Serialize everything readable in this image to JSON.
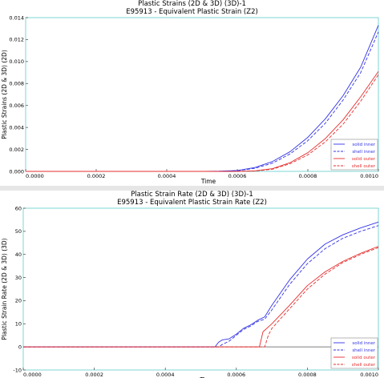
{
  "chart_data": [
    {
      "type": "line",
      "title": "Plastic Strains (2D & 3D) (3D)-1",
      "subtitle": "E95913 - Equivalent Plastic Strain (Z2)",
      "xlabel": "Time",
      "ylabel": "Plastic Strains (2D & 3D) (2D)",
      "xlim": [
        0,
        0.001
      ],
      "ylim": [
        0,
        0.014
      ],
      "xticks": [
        "0.0000",
        "0.0002",
        "0.0004",
        "0.0006",
        "0.0008",
        "0.0010"
      ],
      "yticks": [
        "0.000",
        "0.002",
        "0.004",
        "0.006",
        "0.008",
        "0.010",
        "0.012",
        "0.014"
      ],
      "legend_position": "bottom-right",
      "grid": false,
      "series": [
        {
          "name": "solid inner",
          "color": "#3333e6",
          "dash": "solid",
          "x": [
            0,
            0.0005,
            0.00055,
            0.0006,
            0.00065,
            0.0007,
            0.00075,
            0.0008,
            0.00085,
            0.0009,
            0.00095,
            0.001
          ],
          "y": [
            0,
            0,
            2e-05,
            8e-05,
            0.00035,
            0.0009,
            0.0018,
            0.0031,
            0.0048,
            0.0069,
            0.0095,
            0.0133
          ]
        },
        {
          "name": "shell inner",
          "color": "#3333e6",
          "dash": "dashed",
          "x": [
            0,
            0.0005,
            0.00055,
            0.0006,
            0.00065,
            0.0007,
            0.00075,
            0.0008,
            0.00085,
            0.0009,
            0.00095,
            0.001
          ],
          "y": [
            0,
            0,
            1e-05,
            6e-05,
            0.00028,
            0.00075,
            0.0016,
            0.0028,
            0.0044,
            0.0065,
            0.009,
            0.0127
          ]
        },
        {
          "name": "solid outer",
          "color": "#e62e2e",
          "dash": "solid",
          "x": [
            0,
            0.0006,
            0.00065,
            0.0007,
            0.00075,
            0.0008,
            0.00085,
            0.0009,
            0.00095,
            0.001
          ],
          "y": [
            0,
            0,
            5e-05,
            0.00025,
            0.0008,
            0.0017,
            0.003,
            0.0047,
            0.0068,
            0.0091
          ]
        },
        {
          "name": "shell outer",
          "color": "#e62e2e",
          "dash": "dashed",
          "x": [
            0,
            0.0006,
            0.00065,
            0.0007,
            0.00075,
            0.0008,
            0.00085,
            0.0009,
            0.00095,
            0.001
          ],
          "y": [
            0,
            0,
            3e-05,
            0.0002,
            0.0007,
            0.0015,
            0.0027,
            0.0043,
            0.0064,
            0.0088
          ]
        }
      ]
    },
    {
      "type": "line",
      "title": "Plastic Strain Rate (2D & 3D) (3D)-1",
      "subtitle": "E95913 - Equivalent Plastic Strain Rate (Z2)",
      "xlabel": "Time",
      "ylabel": "Plastic Strain Rate (2D & 3D) (3D)",
      "xlim": [
        0,
        0.001
      ],
      "ylim": [
        -10,
        60
      ],
      "xticks": [
        "0.0000",
        "0.0002",
        "0.0004",
        "0.0006",
        "0.0008",
        "0.0010"
      ],
      "yticks": [
        "-10",
        "0",
        "10",
        "20",
        "30",
        "40",
        "50",
        "60"
      ],
      "legend_position": "bottom-right",
      "grid": false,
      "series": [
        {
          "name": "solid inner",
          "color": "#3333e6",
          "dash": "solid",
          "x": [
            0,
            0.00054,
            0.00055,
            0.00056,
            0.00058,
            0.0006,
            0.00062,
            0.00064,
            0.00066,
            0.00068,
            0.0007,
            0.00075,
            0.0008,
            0.00085,
            0.0009,
            0.00095,
            0.001
          ],
          "y": [
            0,
            0,
            2,
            3,
            3.5,
            5.5,
            8,
            9.5,
            11.5,
            13,
            18,
            29,
            38,
            44.5,
            48.5,
            51.5,
            54
          ]
        },
        {
          "name": "shell inner",
          "color": "#3333e6",
          "dash": "dashed",
          "x": [
            0,
            0.00055,
            0.00056,
            0.00058,
            0.0006,
            0.00062,
            0.00064,
            0.00066,
            0.00068,
            0.0007,
            0.00075,
            0.0008,
            0.00085,
            0.0009,
            0.00095,
            0.001
          ],
          "y": [
            0,
            0,
            1,
            2.5,
            5,
            7.5,
            9,
            11,
            12,
            16,
            27,
            36,
            42.5,
            47,
            50,
            52.5
          ]
        },
        {
          "name": "solid outer",
          "color": "#e62e2e",
          "dash": "solid",
          "x": [
            0,
            0.000665,
            0.000675,
            0.0007,
            0.00075,
            0.0008,
            0.00085,
            0.0009,
            0.00095,
            0.001
          ],
          "y": [
            0,
            0,
            6.5,
            10,
            18,
            26.5,
            32.5,
            37,
            40.5,
            43.5
          ]
        },
        {
          "name": "shell outer",
          "color": "#e62e2e",
          "dash": "dashed",
          "x": [
            0,
            0.00068,
            0.00069,
            0.0007,
            0.00075,
            0.0008,
            0.00085,
            0.0009,
            0.00095,
            0.001
          ],
          "y": [
            0,
            0,
            5,
            8,
            16.5,
            25,
            31.5,
            36.5,
            40,
            43
          ]
        }
      ]
    }
  ]
}
